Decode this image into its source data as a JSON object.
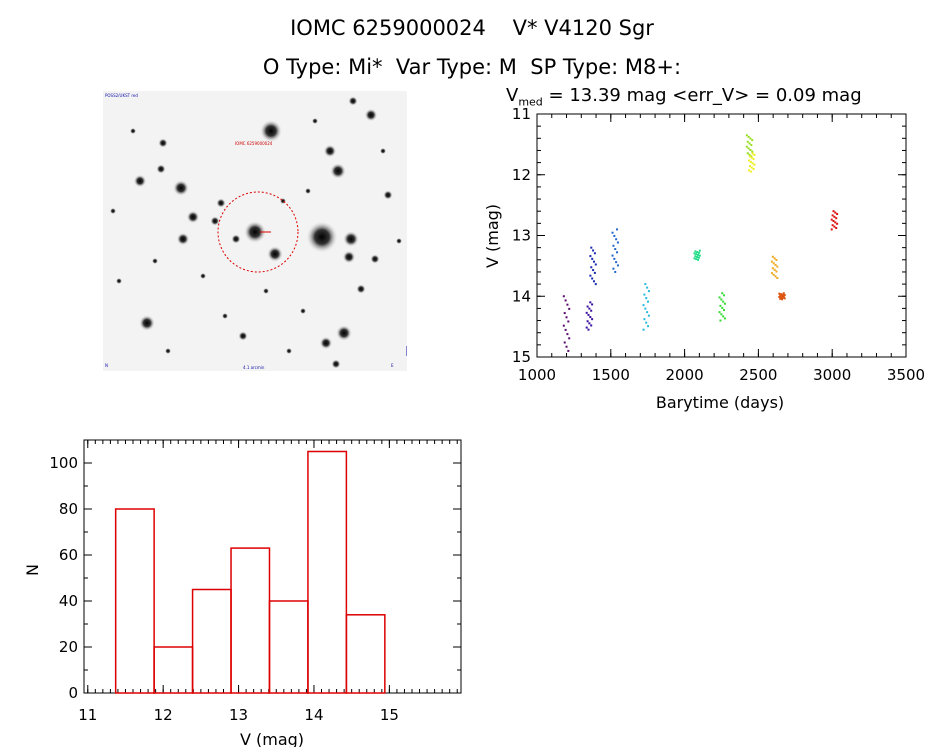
{
  "header": {
    "title_line1": "IOMC 6259000024    V* V4120 Sgr",
    "title_line2": "O Type: Mi*  Var Type: M  SP Type: M8+:",
    "stats_prefix": "V",
    "stats_sub": "med",
    "stats_rest": " = 13.39 mag <err_V> = 0.09 mag"
  },
  "finder": {
    "label_tl": "POSS2/UKST red",
    "label_target": "IOMC 6259000024",
    "label_bottom": "4.1 arcmin",
    "label_bl": "N",
    "label_br": "E"
  },
  "chart_data": [
    {
      "type": "scatter",
      "xlabel": "Barytime (days)",
      "ylabel": "V (mag)",
      "xlim": [
        1000,
        3500
      ],
      "ylim": [
        15,
        11
      ],
      "xticks": [
        "1000",
        "1500",
        "2000",
        "2500",
        "3000",
        "3500"
      ],
      "yticks": [
        "11",
        "12",
        "13",
        "14",
        "15"
      ],
      "groups": [
        {
          "color": "#5a0a6e",
          "x": 1200,
          "ymin": 14.0,
          "ymax": 14.9
        },
        {
          "color": "#3a10a0",
          "x": 1355,
          "ymin": 14.1,
          "ymax": 14.55
        },
        {
          "color": "#1a2aae",
          "x": 1380,
          "ymin": 13.2,
          "ymax": 13.8
        },
        {
          "color": "#2266cc",
          "x": 1530,
          "ymin": 12.9,
          "ymax": 13.6
        },
        {
          "color": "#22bbdd",
          "x": 1740,
          "ymin": 13.8,
          "ymax": 14.55
        },
        {
          "color": "#22dd88",
          "x": 2085,
          "ymin": 13.25,
          "ymax": 13.4
        },
        {
          "color": "#33dd33",
          "x": 2255,
          "ymin": 13.95,
          "ymax": 14.4
        },
        {
          "color": "#99dd22",
          "x": 2440,
          "ymin": 11.35,
          "ymax": 11.7
        },
        {
          "color": "#eeee22",
          "x": 2455,
          "ymin": 11.65,
          "ymax": 11.95
        },
        {
          "color": "#eeaa22",
          "x": 2610,
          "ymin": 13.35,
          "ymax": 13.7
        },
        {
          "color": "#dd5511",
          "x": 2660,
          "ymin": 13.95,
          "ymax": 14.05
        },
        {
          "color": "#dd1111",
          "x": 3015,
          "ymin": 12.6,
          "ymax": 12.9
        }
      ]
    },
    {
      "type": "bar",
      "xlabel": "V (mag)",
      "ylabel": "N",
      "xlim": [
        10.95,
        15.95
      ],
      "ylim": [
        0,
        110
      ],
      "xticks": [
        "11",
        "12",
        "13",
        "14",
        "15"
      ],
      "yticks": [
        "0",
        "20",
        "40",
        "60",
        "80",
        "100"
      ],
      "bins": [
        {
          "x0": 11.37,
          "x1": 11.88,
          "value": 80
        },
        {
          "x0": 11.88,
          "x1": 12.39,
          "value": 20
        },
        {
          "x0": 12.39,
          "x1": 12.9,
          "value": 45
        },
        {
          "x0": 12.9,
          "x1": 13.41,
          "value": 63
        },
        {
          "x0": 13.41,
          "x1": 13.92,
          "value": 40
        },
        {
          "x0": 13.92,
          "x1": 14.43,
          "value": 105
        },
        {
          "x0": 14.43,
          "x1": 14.94,
          "value": 34
        }
      ],
      "bar_color": "#dd0000"
    }
  ]
}
